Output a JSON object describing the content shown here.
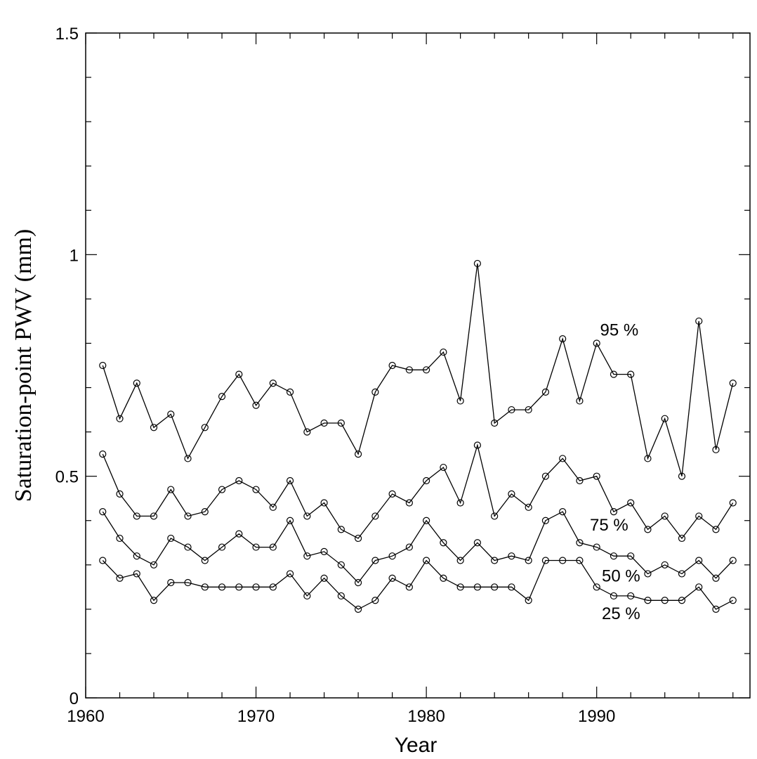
{
  "chart_data": {
    "type": "line",
    "xlabel": "Year",
    "ylabel": "Saturation-point PWV (mm)",
    "xlim": [
      1960,
      1999
    ],
    "ylim": [
      0,
      1.5
    ],
    "x_ticks": [
      1960,
      1970,
      1980,
      1990
    ],
    "x_tick_labels": [
      "1960",
      "1970",
      "1980",
      "1990"
    ],
    "y_ticks": [
      0,
      0.5,
      1,
      1.5
    ],
    "y_tick_labels": [
      "0",
      "0.5",
      "1",
      "1.5"
    ],
    "grid": false,
    "marker": "open-circle",
    "x": [
      1961,
      1962,
      1963,
      1964,
      1965,
      1966,
      1967,
      1968,
      1969,
      1970,
      1971,
      1972,
      1973,
      1974,
      1975,
      1976,
      1977,
      1978,
      1979,
      1980,
      1981,
      1982,
      1983,
      1984,
      1985,
      1986,
      1987,
      1988,
      1989,
      1990,
      1991,
      1992,
      1993,
      1994,
      1995,
      1996,
      1997,
      1998
    ],
    "series": [
      {
        "name": "95 %",
        "label_x": 1990.2,
        "label_y": 0.83,
        "values": [
          0.75,
          0.63,
          0.71,
          0.61,
          0.64,
          0.54,
          0.61,
          0.68,
          0.73,
          0.66,
          0.71,
          0.69,
          0.6,
          0.62,
          0.62,
          0.55,
          0.69,
          0.75,
          0.74,
          0.74,
          0.78,
          0.67,
          0.98,
          0.62,
          0.65,
          0.65,
          0.69,
          0.81,
          0.67,
          0.8,
          0.73,
          0.73,
          0.54,
          0.63,
          0.5,
          0.85,
          0.56,
          0.71
        ]
      },
      {
        "name": "75 %",
        "label_x": 1989.6,
        "label_y": 0.39,
        "values": [
          0.55,
          0.46,
          0.41,
          0.41,
          0.47,
          0.41,
          0.42,
          0.47,
          0.49,
          0.47,
          0.43,
          0.49,
          0.41,
          0.44,
          0.38,
          0.36,
          0.41,
          0.46,
          0.44,
          0.49,
          0.52,
          0.44,
          0.57,
          0.41,
          0.46,
          0.43,
          0.5,
          0.54,
          0.49,
          0.5,
          0.42,
          0.44,
          0.38,
          0.41,
          0.36,
          0.41,
          0.38,
          0.44
        ]
      },
      {
        "name": "50 %",
        "label_x": 1990.3,
        "label_y": 0.275,
        "values": [
          0.42,
          0.36,
          0.32,
          0.3,
          0.36,
          0.34,
          0.31,
          0.34,
          0.37,
          0.34,
          0.34,
          0.4,
          0.32,
          0.33,
          0.3,
          0.26,
          0.31,
          0.32,
          0.34,
          0.4,
          0.35,
          0.31,
          0.35,
          0.31,
          0.32,
          0.31,
          0.4,
          0.42,
          0.35,
          0.34,
          0.32,
          0.32,
          0.28,
          0.3,
          0.28,
          0.31,
          0.27,
          0.31
        ]
      },
      {
        "name": "25 %",
        "label_x": 1990.3,
        "label_y": 0.19,
        "values": [
          0.31,
          0.27,
          0.28,
          0.22,
          0.26,
          0.26,
          0.25,
          0.25,
          0.25,
          0.25,
          0.25,
          0.28,
          0.23,
          0.27,
          0.23,
          0.2,
          0.22,
          0.27,
          0.25,
          0.31,
          0.27,
          0.25,
          0.25,
          0.25,
          0.25,
          0.22,
          0.31,
          0.31,
          0.31,
          0.25,
          0.23,
          0.23,
          0.22,
          0.22,
          0.22,
          0.25,
          0.2,
          0.22
        ]
      }
    ]
  }
}
